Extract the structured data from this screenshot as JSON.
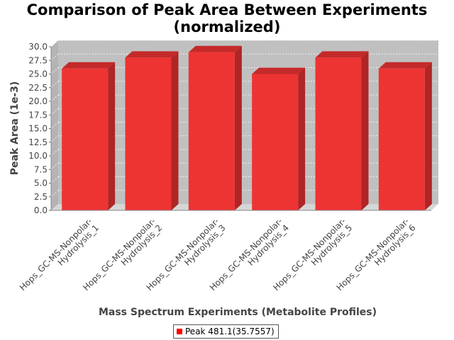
{
  "chart_data": {
    "type": "bar",
    "title_lines": [
      "Comparison of Peak Area Between Experiments",
      "(normalized)"
    ],
    "xlabel": "Mass Spectrum Experiments (Metabolite Profiles)",
    "ylabel": "Peak Area (1e-3)",
    "ylim": [
      0,
      30
    ],
    "yticks": [
      "0.0",
      "2.5",
      "5.0",
      "7.5",
      "10.0",
      "12.5",
      "15.0",
      "17.5",
      "20.0",
      "22.5",
      "25.0",
      "27.5",
      "30.0"
    ],
    "categories": [
      [
        "Hops_GC-MS-Nonpolar-",
        "Hydrolysis_1"
      ],
      [
        "Hops_GC-MS-Nonpolar-",
        "Hydrolysis_2"
      ],
      [
        "Hops_GC-MS-Nonpolar-",
        "Hydrolysis_3"
      ],
      [
        "Hops_GC-MS-Nonpolar-",
        "Hydrolysis_4"
      ],
      [
        "Hops_GC-MS-Nonpolar-",
        "Hydrolysis_5"
      ],
      [
        "Hops_GC-MS-Nonpolar-",
        "Hydrolysis_6"
      ]
    ],
    "series": [
      {
        "name": "Peak 481.1(35.7557)",
        "values": [
          26.0,
          28.0,
          29.0,
          25.0,
          28.0,
          26.0
        ]
      }
    ],
    "grid": true,
    "legend_position": "bottom-center",
    "colors": {
      "bar_front": "#ee3333",
      "bar_top": "#c42a2a",
      "bar_side": "#b02525",
      "plot_back": "#c0c0c0",
      "plot_floor": "#d6d6d6",
      "plot_wall": "#b4b4b4",
      "legend_swatch": "#ff0000"
    }
  }
}
